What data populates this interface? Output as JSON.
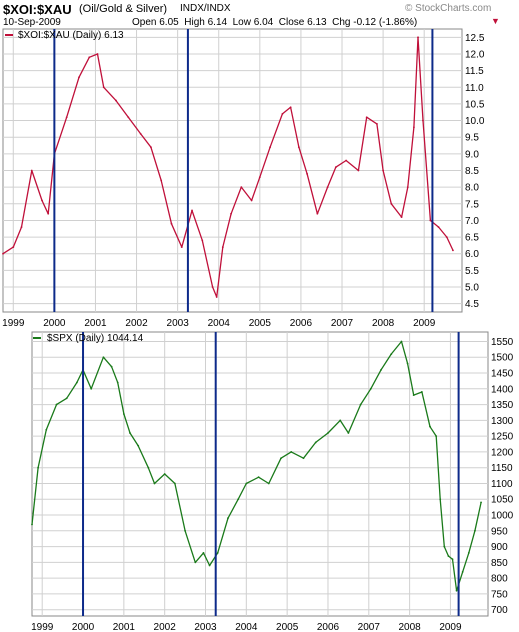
{
  "header": {
    "symbol": "$XOI:$XAU",
    "description": "(Oil/Gold & Silver)",
    "exchange": "INDX/INDX",
    "watermark": "© StockCharts.com",
    "date": "10-Sep-2009",
    "quote": "Open 6.05  High 6.14  Low 6.04  Close 6.13  Chg -0.12 (-1.86%)",
    "change_arrow": "▼"
  },
  "colors": {
    "ratio_line": "#c0103a",
    "spx_line": "#1a7a1a",
    "vertical_markers": "#0d2a8a",
    "grid": "#d0d0d0"
  },
  "chart_data": [
    {
      "type": "line",
      "legend": "$XOI:$XAU (Daily) 6.13",
      "x_tick_labels": [
        "1999",
        "2000",
        "2001",
        "2002",
        "2003",
        "2004",
        "2005",
        "2006",
        "2007",
        "2008",
        "2009"
      ],
      "y_tick_labels": [
        "4.5",
        "5.0",
        "5.5",
        "6.0",
        "6.5",
        "7.0",
        "7.5",
        "8.0",
        "8.5",
        "9.0",
        "9.5",
        "10.0",
        "10.5",
        "11.0",
        "11.5",
        "12.0",
        "12.5"
      ],
      "ylim": [
        4.25,
        12.75
      ],
      "xlim": [
        1998.75,
        2009.92
      ],
      "grid": true,
      "series": [
        {
          "values_x": [
            1998.75,
            1999.0,
            1999.2,
            1999.45,
            1999.7,
            1999.85,
            2000.0,
            2000.3,
            2000.6,
            2000.85,
            2001.05,
            2001.2,
            2001.5,
            2001.8,
            2002.1,
            2002.35,
            2002.6,
            2002.85,
            2003.1,
            2003.35,
            2003.6,
            2003.85,
            2003.95,
            2004.1,
            2004.3,
            2004.55,
            2004.8,
            2005.0,
            2005.25,
            2005.55,
            2005.75,
            2005.95,
            2006.15,
            2006.4,
            2006.65,
            2006.85,
            2007.1,
            2007.4,
            2007.6,
            2007.85,
            2008.0,
            2008.2,
            2008.45,
            2008.6,
            2008.75,
            2008.85,
            2008.97,
            2009.15,
            2009.35,
            2009.55,
            2009.7
          ],
          "values_y": [
            6.0,
            6.2,
            6.8,
            8.5,
            7.6,
            7.2,
            9.0,
            10.1,
            11.3,
            11.9,
            12.0,
            11.0,
            10.6,
            10.1,
            9.6,
            9.2,
            8.2,
            6.9,
            6.2,
            7.3,
            6.4,
            5.0,
            4.7,
            6.2,
            7.2,
            8.0,
            7.6,
            8.3,
            9.2,
            10.2,
            10.4,
            9.2,
            8.4,
            7.2,
            8.0,
            8.6,
            8.8,
            8.5,
            10.1,
            9.9,
            8.5,
            7.5,
            7.1,
            8.0,
            9.8,
            12.5,
            10.0,
            7.0,
            6.8,
            6.5,
            6.1
          ]
        }
      ]
    },
    {
      "type": "line",
      "legend": "$SPX (Daily) 1044.14",
      "x_tick_labels": [
        "1999",
        "2000",
        "2001",
        "2002",
        "2003",
        "2004",
        "2005",
        "2006",
        "2007",
        "2008",
        "2009"
      ],
      "y_tick_labels": [
        "700",
        "750",
        "800",
        "850",
        "900",
        "950",
        "1000",
        "1050",
        "1100",
        "1150",
        "1200",
        "1250",
        "1300",
        "1350",
        "1400",
        "1450",
        "1500",
        "1550"
      ],
      "ylim": [
        680,
        1580
      ],
      "xlim": [
        1998.75,
        2009.92
      ],
      "grid": true,
      "series": [
        {
          "values_x": [
            1998.75,
            1998.9,
            1999.1,
            1999.35,
            1999.6,
            1999.85,
            2000.0,
            2000.2,
            2000.5,
            2000.7,
            2000.85,
            2001.0,
            2001.15,
            2001.35,
            2001.6,
            2001.75,
            2002.0,
            2002.25,
            2002.5,
            2002.75,
            2002.95,
            2003.1,
            2003.3,
            2003.55,
            2003.8,
            2004.0,
            2004.3,
            2004.55,
            2004.85,
            2005.1,
            2005.4,
            2005.7,
            2006.0,
            2006.3,
            2006.5,
            2006.8,
            2007.05,
            2007.3,
            2007.55,
            2007.8,
            2007.95,
            2008.1,
            2008.3,
            2008.5,
            2008.65,
            2008.75,
            2008.85,
            2008.95,
            2009.05,
            2009.15,
            2009.3,
            2009.45,
            2009.6,
            2009.75
          ],
          "values_y": [
            970,
            1150,
            1270,
            1350,
            1370,
            1420,
            1460,
            1400,
            1500,
            1470,
            1420,
            1320,
            1260,
            1220,
            1150,
            1100,
            1130,
            1100,
            950,
            850,
            880,
            840,
            880,
            990,
            1050,
            1100,
            1120,
            1100,
            1180,
            1200,
            1180,
            1230,
            1260,
            1300,
            1260,
            1350,
            1400,
            1460,
            1510,
            1550,
            1480,
            1380,
            1390,
            1280,
            1250,
            1050,
            900,
            870,
            860,
            760,
            820,
            880,
            950,
            1040
          ]
        }
      ]
    }
  ],
  "vertical_markers_x": [
    2000.0,
    2003.25,
    2009.2
  ]
}
